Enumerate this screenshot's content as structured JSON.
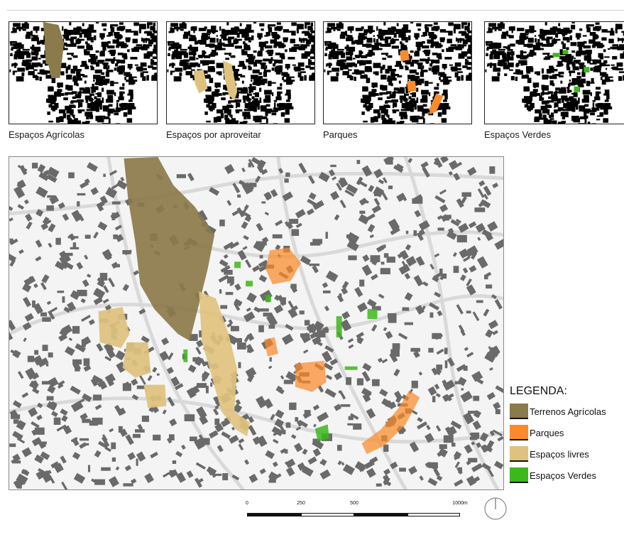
{
  "thumbnails": [
    {
      "caption": "Espaços Agrícolas"
    },
    {
      "caption": "Espaços por aproveitar"
    },
    {
      "caption": "Parques"
    },
    {
      "caption": "Espaços Verdes"
    }
  ],
  "legend": {
    "title": "LEGENDA:",
    "items": [
      {
        "label": "Terrenos Agrícolas",
        "color": "#8b7a4a"
      },
      {
        "label": "Parques",
        "color": "#fb8a2a"
      },
      {
        "label": "Espaços livres",
        "color": "#dfc27e"
      },
      {
        "label": "Espaços Verdes",
        "color": "#3db81a"
      }
    ]
  },
  "scale_bar": {
    "ticks": [
      "0",
      "250",
      "500",
      "1000m"
    ]
  },
  "colors": {
    "agricultural": "#8b7a4a",
    "parks": "#fb8a2a",
    "vacant": "#dfc27e",
    "green": "#3db81a",
    "buildings": "#6a6a6a",
    "map_background": "#f4f4f4"
  },
  "icons": {
    "north_arrow": "north-arrow-icon"
  }
}
